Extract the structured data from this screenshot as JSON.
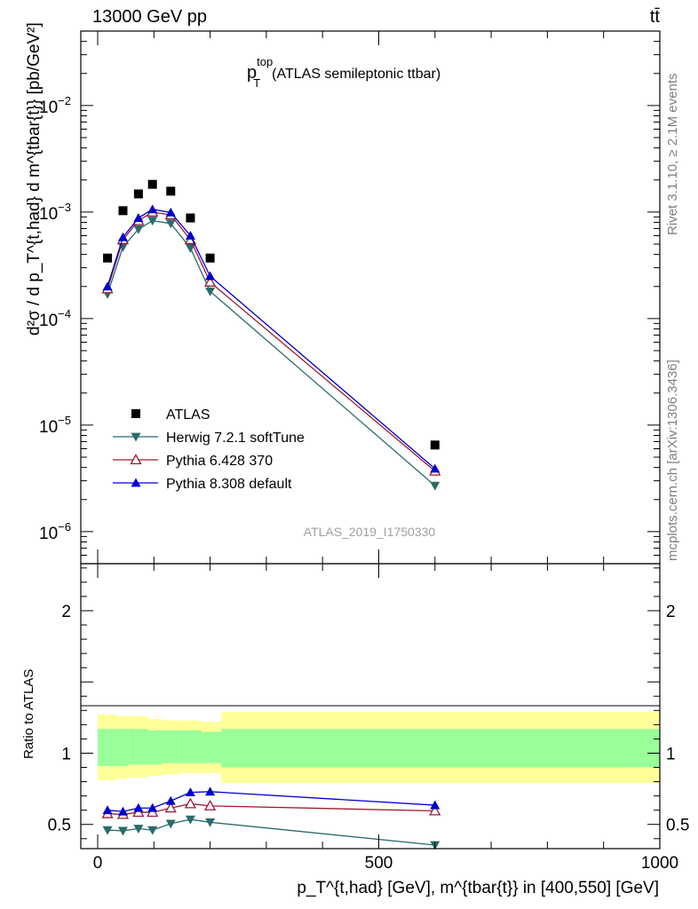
{
  "header": {
    "left": "13000 GeV pp",
    "right": "tt̄"
  },
  "side_labels": {
    "rivet": "Rivet 3.1.10, ≥ 2.1M events",
    "mcplots": "mcplots.cern.ch [arXiv:1306.3436]"
  },
  "chart_data": [
    {
      "type": "scatter",
      "panel": "main",
      "title_main": "p",
      "title_sup": "top",
      "title_sub": "T",
      "title_rest": "(ATLAS semileptonic ttbar)",
      "ylabel": "d²σ / d p_T^{t,had} d m^{tbar{t}} [pb/GeV²]",
      "yscale": "log",
      "ylim": [
        5e-07,
        0.05
      ],
      "xlim": [
        -30,
        1000
      ],
      "watermark": "ATLAS_2019_I1750330",
      "legend_position": "bottom-left",
      "x": [
        17.5,
        45,
        72.5,
        97.5,
        130,
        165,
        200,
        600
      ],
      "series": [
        {
          "name": "ATLAS",
          "marker": "square",
          "color": "#000000",
          "values": [
            0.00037,
            0.00103,
            0.00148,
            0.00182,
            0.00157,
            0.00088,
            0.00037,
            6.5e-06
          ]
        },
        {
          "name": "Herwig 7.2.1 softTune",
          "marker": "triangle-down",
          "color": "#2a6b6b",
          "values": [
            0.00017,
            0.00047,
            0.00069,
            0.00083,
            0.00078,
            0.00046,
            0.00018,
            2.7e-06
          ]
        },
        {
          "name": "Pythia 6.428 370",
          "marker": "triangle-up-open",
          "color": "#9b1b30",
          "values": [
            0.00019,
            0.00055,
            0.00083,
            0.001,
            0.00094,
            0.00055,
            0.00022,
            3.7e-06
          ]
        },
        {
          "name": "Pythia 8.308 default",
          "marker": "triangle-up",
          "color": "#0000cc",
          "values": [
            0.0002,
            0.00058,
            0.00088,
            0.00106,
            0.00099,
            0.0006,
            0.00025,
            3.9e-06
          ]
        }
      ],
      "y_ticks": [
        {
          "value": 1e-06,
          "base": "10",
          "exp": "−6"
        },
        {
          "value": 1e-05,
          "base": "10",
          "exp": "−5"
        },
        {
          "value": 0.0001,
          "base": "10",
          "exp": "−4"
        },
        {
          "value": 0.001,
          "base": "10",
          "exp": "−3"
        },
        {
          "value": 0.01,
          "base": "10",
          "exp": "−2"
        }
      ]
    },
    {
      "type": "line",
      "panel": "ratio",
      "ylabel": "Ratio to ATLAS",
      "ylim": [
        0.33,
        2.33
      ],
      "xlim": [
        -30,
        1000
      ],
      "y_ticks": [
        "0.5",
        "1",
        "2"
      ],
      "y_tick_values": [
        0.5,
        1,
        2
      ],
      "x_ticks": [
        "0",
        "500",
        "1000"
      ],
      "x_tick_values": [
        0,
        500,
        1000
      ],
      "xlabel": "p_T^{t,had} [GeV], m^{tbar{t}} in [400,550] [GeV]",
      "bands": {
        "edges": [
          0,
          35,
          55,
          90,
          115,
          145,
          185,
          220,
          1000
        ],
        "yellow": [
          [
            0.81,
            1.27
          ],
          [
            0.82,
            1.26
          ],
          [
            0.83,
            1.26
          ],
          [
            0.84,
            1.24
          ],
          [
            0.85,
            1.23
          ],
          [
            0.86,
            1.23
          ],
          [
            0.86,
            1.22
          ],
          [
            0.79,
            1.29
          ]
        ],
        "green": [
          [
            0.91,
            1.17
          ],
          [
            0.91,
            1.17
          ],
          [
            0.92,
            1.17
          ],
          [
            0.92,
            1.16
          ],
          [
            0.93,
            1.16
          ],
          [
            0.93,
            1.16
          ],
          [
            0.93,
            1.15
          ],
          [
            0.9,
            1.17
          ]
        ]
      },
      "x": [
        17.5,
        45,
        72.5,
        97.5,
        130,
        165,
        200,
        600
      ],
      "series": [
        {
          "name": "Herwig 7.2.1 softTune",
          "color": "#2a6b6b",
          "marker": "triangle-down",
          "values": [
            0.46,
            0.455,
            0.47,
            0.46,
            0.505,
            0.535,
            0.515,
            0.355
          ]
        },
        {
          "name": "Pythia 6.428 370",
          "color": "#9b1b30",
          "marker": "triangle-up-open",
          "values": [
            0.575,
            0.57,
            0.585,
            0.585,
            0.615,
            0.645,
            0.63,
            0.595
          ]
        },
        {
          "name": "Pythia 8.308 default",
          "color": "#0000cc",
          "marker": "triangle-up",
          "values": [
            0.6,
            0.59,
            0.615,
            0.615,
            0.665,
            0.725,
            0.73,
            0.635
          ]
        }
      ]
    }
  ]
}
